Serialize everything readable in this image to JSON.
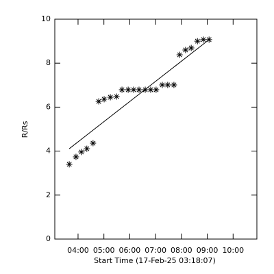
{
  "chart_data": {
    "type": "scatter",
    "x_label": "Start Time (17-Feb-25 03:18:07)",
    "y_label": "R/Rs",
    "xlim": [
      3.1,
      10.92
    ],
    "ylim": [
      0,
      10
    ],
    "xticks": [
      {
        "value": 4,
        "label": "04:00"
      },
      {
        "value": 5,
        "label": "05:00"
      },
      {
        "value": 6,
        "label": "06:00"
      },
      {
        "value": 7,
        "label": "07:00"
      },
      {
        "value": 8,
        "label": "08:00"
      },
      {
        "value": 9,
        "label": "09:00"
      },
      {
        "value": 10,
        "label": "10:00"
      }
    ],
    "yticks": [
      0,
      2,
      4,
      6,
      8,
      10
    ],
    "color": "#000000",
    "x": [
      3.66,
      3.92,
      4.13,
      4.34,
      4.58,
      4.8,
      5.01,
      5.25,
      5.49,
      5.7,
      5.94,
      6.15,
      6.36,
      6.6,
      6.81,
      7.02,
      7.26,
      7.47,
      7.71,
      7.93,
      8.16,
      8.38,
      8.62,
      8.85,
      9.07
    ],
    "values": [
      3.4,
      3.74,
      3.96,
      4.11,
      4.36,
      6.26,
      6.36,
      6.45,
      6.48,
      6.79,
      6.79,
      6.79,
      6.79,
      6.79,
      6.79,
      6.79,
      7.01,
      7.01,
      7.01,
      8.38,
      8.6,
      8.69,
      9.0,
      9.07,
      9.07
    ],
    "fit": {
      "x": [
        3.66,
        9.07
      ],
      "values": [
        4.11,
        9.07
      ]
    }
  }
}
